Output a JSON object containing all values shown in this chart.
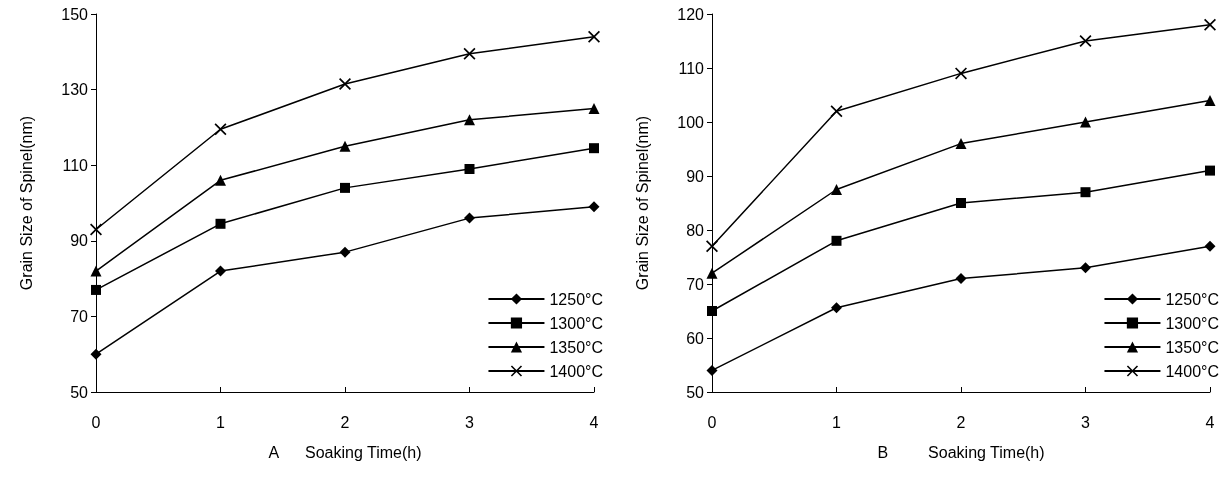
{
  "chart_data": [
    {
      "type": "line",
      "xlabel": "A      Soaking Time(h)",
      "ylabel": "Grain Size of Spinel(nm)",
      "x": [
        0,
        1,
        2,
        3,
        4
      ],
      "xlim": [
        0,
        4
      ],
      "xticks": [
        0,
        1,
        2,
        3,
        4
      ],
      "ylim": [
        50,
        150
      ],
      "yticks": [
        50,
        70,
        90,
        110,
        130,
        150
      ],
      "grid": false,
      "legend": "bottom right",
      "line_style": "solid",
      "series": [
        {
          "name": "1250°C",
          "color": "#000000",
          "marker": "diamond",
          "values": [
            60,
            82,
            87,
            96,
            99
          ]
        },
        {
          "name": "1300°C",
          "color": "#000000",
          "marker": "square",
          "values": [
            77,
            94.5,
            104,
            109,
            114.5
          ]
        },
        {
          "name": "1350°C",
          "color": "#000000",
          "marker": "triangle",
          "values": [
            82,
            106,
            115,
            122,
            125
          ]
        },
        {
          "name": "1400°C",
          "color": "#000000",
          "marker": "cross",
          "values": [
            93,
            119.5,
            131.5,
            139.5,
            144
          ]
        }
      ]
    },
    {
      "type": "line",
      "xlabel": "B         Soaking Time(h)",
      "ylabel": "Grain Size of Spinel(nm)",
      "x": [
        0,
        1,
        2,
        3,
        4
      ],
      "xlim": [
        0,
        4
      ],
      "xticks": [
        0,
        1,
        2,
        3,
        4
      ],
      "ylim": [
        50,
        120
      ],
      "yticks": [
        50,
        60,
        70,
        80,
        90,
        100,
        110,
        120
      ],
      "grid": false,
      "legend": "bottom right",
      "line_style": "solid",
      "series": [
        {
          "name": "1250°C",
          "color": "#000000",
          "marker": "diamond",
          "values": [
            54,
            65.6,
            71,
            73,
            77
          ]
        },
        {
          "name": "1300°C",
          "color": "#000000",
          "marker": "square",
          "values": [
            65,
            78,
            85,
            87,
            91
          ]
        },
        {
          "name": "1350°C",
          "color": "#000000",
          "marker": "triangle",
          "values": [
            72,
            87.5,
            96,
            100,
            104
          ]
        },
        {
          "name": "1400°C",
          "color": "#000000",
          "marker": "cross",
          "values": [
            77,
            102,
            109,
            115,
            118
          ]
        }
      ]
    }
  ]
}
